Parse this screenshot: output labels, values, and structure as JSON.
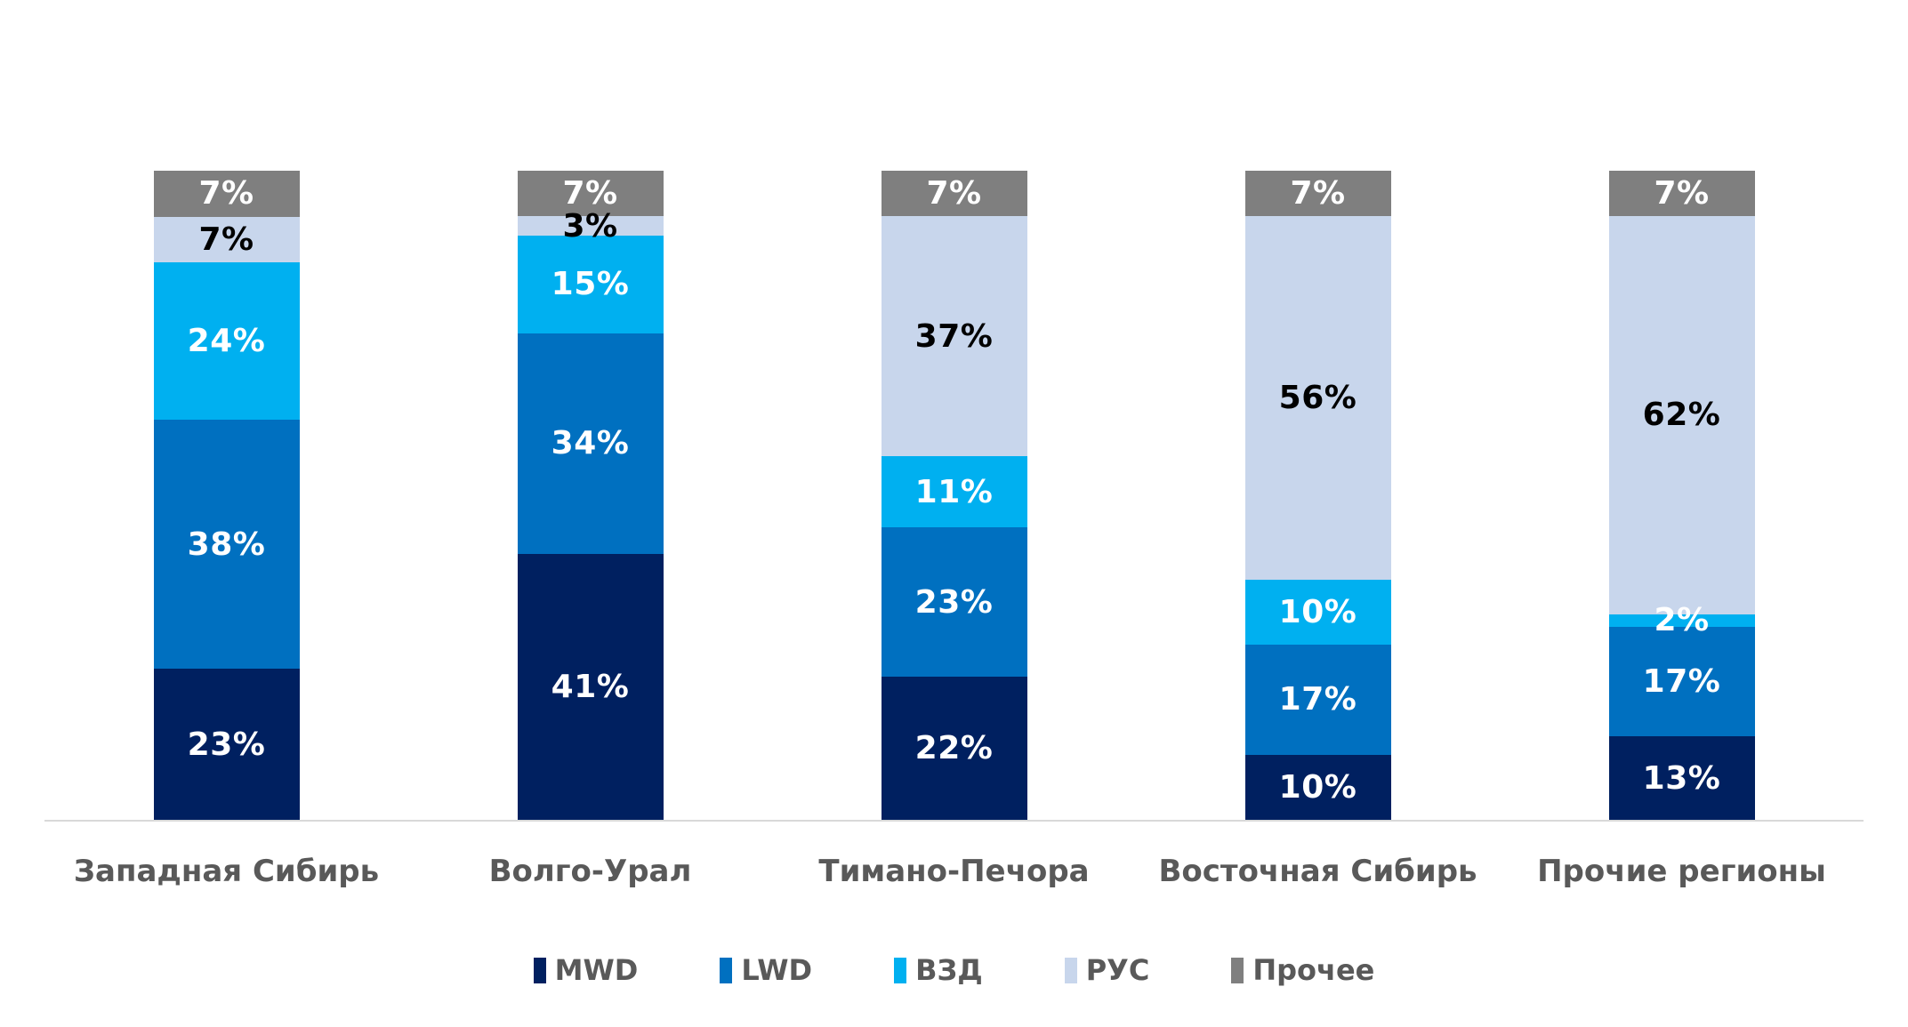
{
  "chart_data": {
    "type": "bar",
    "subtype": "stacked-100",
    "orientation": "vertical",
    "title": "",
    "xlabel": "",
    "ylabel": "",
    "value_suffix": "%",
    "grid": false,
    "legend_position": "bottom",
    "axis_line_color": "#d9d9d9",
    "category_text_color": "#595959",
    "background_color": "#ffffff",
    "categories": [
      "Западная Сибирь",
      "Волго-Урал",
      "Тимано-Печора",
      "Восточная Сибирь",
      "Прочие регионы"
    ],
    "series": [
      {
        "name": "MWD",
        "color": "#002060",
        "label_color": "#ffffff",
        "values": [
          23,
          41,
          22,
          10,
          13
        ]
      },
      {
        "name": "LWD",
        "color": "#0070c0",
        "label_color": "#ffffff",
        "values": [
          38,
          34,
          23,
          17,
          17
        ]
      },
      {
        "name": "ВЗД",
        "color": "#00b0f0",
        "label_color": "#ffffff",
        "values": [
          24,
          15,
          11,
          10,
          2
        ]
      },
      {
        "name": "РУС",
        "color": "#c8d6ec",
        "label_color": "#000000",
        "values": [
          7,
          3,
          37,
          56,
          62
        ]
      },
      {
        "name": "Прочее",
        "color": "#7f7f7f",
        "label_color": "#ffffff",
        "values": [
          7,
          7,
          7,
          7,
          7
        ]
      }
    ]
  }
}
